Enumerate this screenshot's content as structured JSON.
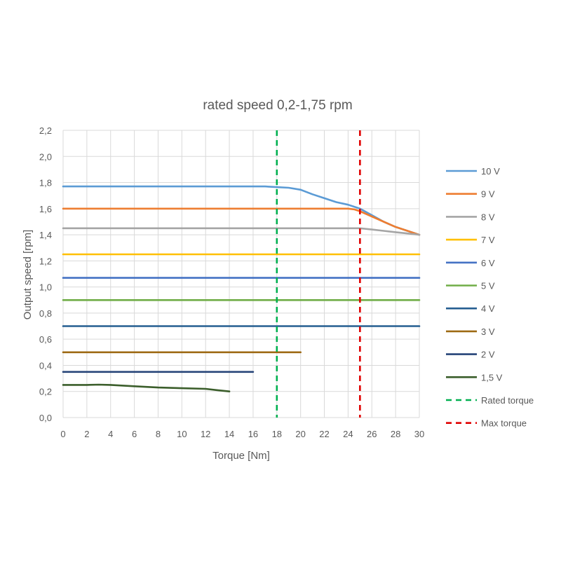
{
  "chart_data": {
    "type": "line",
    "title": "rated speed 0,2-1,75 rpm",
    "xlabel": "Torque [Nm]",
    "ylabel": "Output speed [rpm]",
    "xlim": [
      0,
      30
    ],
    "ylim": [
      0,
      2.2
    ],
    "x_ticks": [
      0,
      2,
      4,
      6,
      8,
      10,
      12,
      14,
      16,
      18,
      20,
      22,
      24,
      26,
      28,
      30
    ],
    "x_tick_labels": [
      "0",
      "2",
      "4",
      "6",
      "8",
      "10",
      "12",
      "14",
      "16",
      "18",
      "20",
      "22",
      "24",
      "26",
      "28",
      "30"
    ],
    "y_ticks": [
      0,
      0.2,
      0.4,
      0.6,
      0.8,
      1.0,
      1.2,
      1.4,
      1.6,
      1.8,
      2.0,
      2.2
    ],
    "y_tick_labels": [
      "0,0",
      "0,2",
      "0,4",
      "0,6",
      "0,8",
      "1,0",
      "1,2",
      "1,4",
      "1,6",
      "1,8",
      "2,0",
      "2,2"
    ],
    "grid": true,
    "legend_position": "right",
    "series": [
      {
        "name": "10 V",
        "color": "#5B9BD5",
        "points": [
          [
            0,
            1.77
          ],
          [
            17,
            1.77
          ],
          [
            18,
            1.765
          ],
          [
            19,
            1.76
          ],
          [
            20,
            1.745
          ],
          [
            21,
            1.71
          ],
          [
            22,
            1.68
          ],
          [
            23,
            1.65
          ],
          [
            24,
            1.63
          ],
          [
            25,
            1.6
          ],
          [
            26,
            1.55
          ],
          [
            27,
            1.5
          ],
          [
            28,
            1.46
          ],
          [
            29,
            1.43
          ],
          [
            30,
            1.4
          ]
        ]
      },
      {
        "name": "9 V",
        "color": "#ED7D31",
        "points": [
          [
            0,
            1.6
          ],
          [
            23,
            1.6
          ],
          [
            24,
            1.6
          ],
          [
            24.5,
            1.595
          ],
          [
            25,
            1.58
          ],
          [
            26,
            1.54
          ],
          [
            27,
            1.5
          ],
          [
            28,
            1.46
          ],
          [
            29,
            1.43
          ],
          [
            30,
            1.4
          ]
        ]
      },
      {
        "name": "8 V",
        "color": "#A5A5A5",
        "points": [
          [
            0,
            1.45
          ],
          [
            24,
            1.45
          ],
          [
            25,
            1.45
          ],
          [
            26,
            1.44
          ],
          [
            27,
            1.43
          ],
          [
            28,
            1.42
          ],
          [
            29,
            1.41
          ],
          [
            30,
            1.4
          ]
        ]
      },
      {
        "name": "7 V",
        "color": "#FFC000",
        "points": [
          [
            0,
            1.25
          ],
          [
            30,
            1.25
          ]
        ]
      },
      {
        "name": "6 V",
        "color": "#4472C4",
        "points": [
          [
            0,
            1.07
          ],
          [
            30,
            1.07
          ]
        ]
      },
      {
        "name": "5 V",
        "color": "#70AD47",
        "points": [
          [
            0,
            0.9
          ],
          [
            30,
            0.9
          ]
        ]
      },
      {
        "name": "4 V",
        "color": "#255E91",
        "points": [
          [
            0,
            0.7
          ],
          [
            30,
            0.7
          ]
        ]
      },
      {
        "name": "3 V",
        "color": "#9E6A14",
        "points": [
          [
            0,
            0.5
          ],
          [
            20,
            0.5
          ]
        ]
      },
      {
        "name": "2 V",
        "color": "#264478",
        "points": [
          [
            0,
            0.35
          ],
          [
            16,
            0.35
          ]
        ]
      },
      {
        "name": "1,5 V",
        "color": "#3B5E2B",
        "points": [
          [
            0,
            0.25
          ],
          [
            2,
            0.25
          ],
          [
            3,
            0.252
          ],
          [
            4,
            0.25
          ],
          [
            6,
            0.24
          ],
          [
            8,
            0.23
          ],
          [
            10,
            0.225
          ],
          [
            12,
            0.22
          ],
          [
            13,
            0.21
          ],
          [
            14,
            0.2
          ]
        ]
      }
    ],
    "reference_lines": [
      {
        "name": "Rated torque",
        "x": 18,
        "color": "#00B050",
        "style": "dashed"
      },
      {
        "name": "Max torque",
        "x": 25,
        "color": "#E00000",
        "style": "dashed"
      }
    ]
  }
}
